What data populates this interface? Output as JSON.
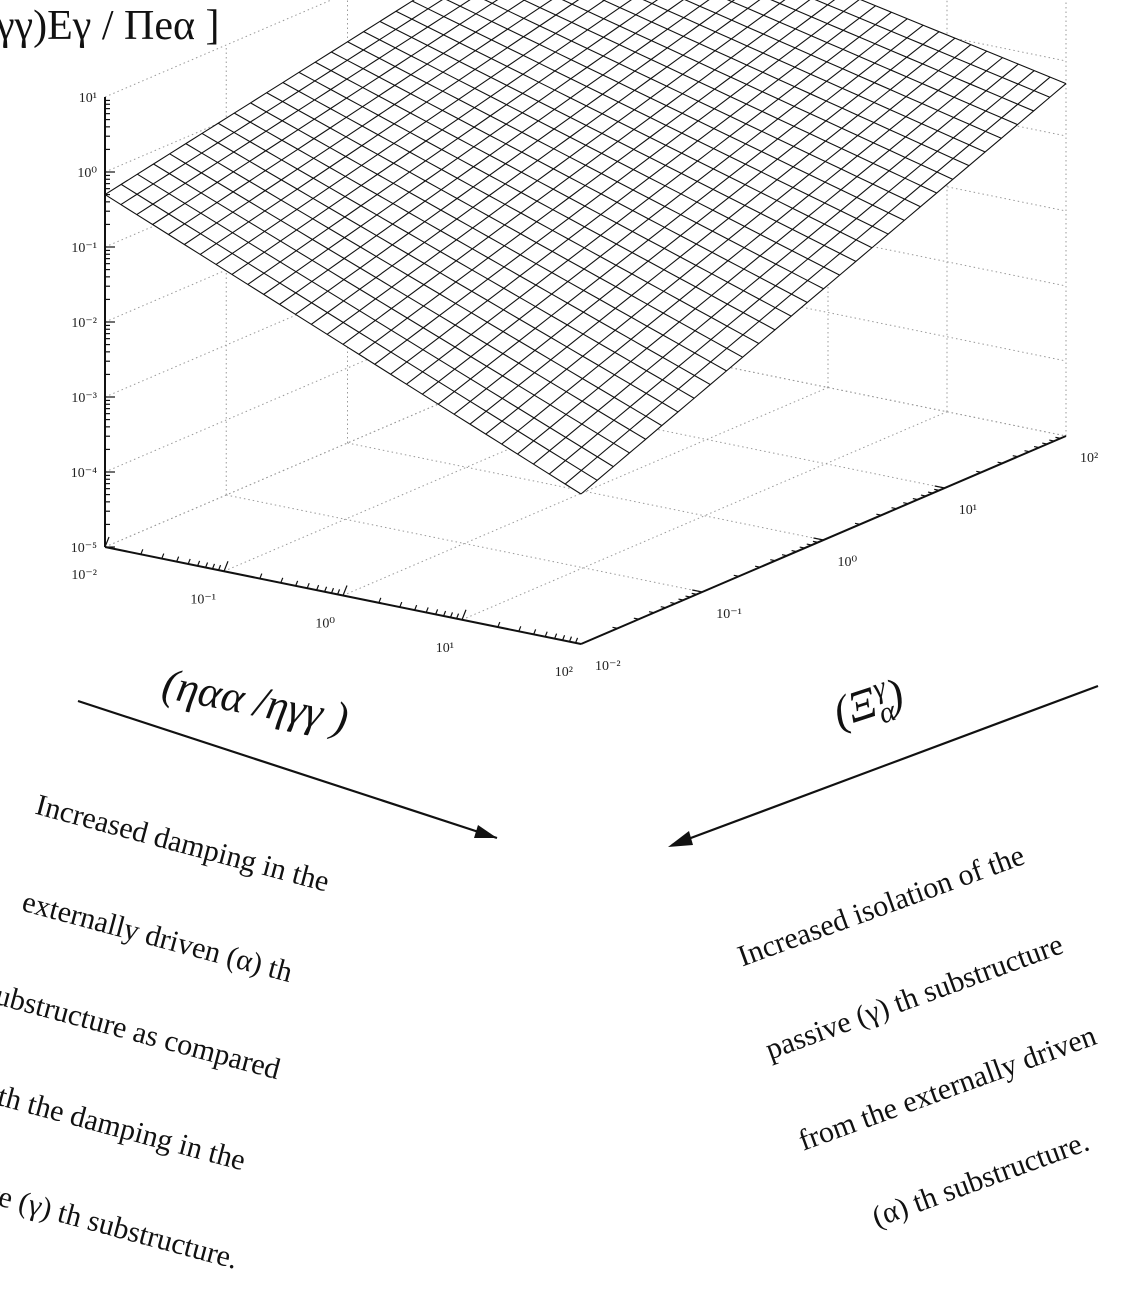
{
  "chart_data": {
    "type": "surface",
    "title": "",
    "zlabel": "γγ)Eγ / Πeα ]",
    "xlabel": "(ηαα /ηγγ )",
    "ylabel": "(Ξαγ)",
    "x_scale": "log",
    "y_scale": "log",
    "z_scale": "log",
    "x_ticks": [
      "10⁻²",
      "10⁻¹",
      "10⁰",
      "10¹",
      "10²"
    ],
    "y_ticks": [
      "10⁻²",
      "10⁻¹",
      "10⁰",
      "10¹",
      "10²"
    ],
    "z_ticks": [
      "10⁻⁵",
      "10⁻⁴",
      "10⁻³",
      "10⁻²",
      "10⁻¹",
      "10⁰",
      "10¹"
    ],
    "xlim": [
      0.01,
      100
    ],
    "ylim": [
      0.01,
      100
    ],
    "zlim": [
      1e-05,
      10
    ],
    "grid": true,
    "corner_values": [
      {
        "x": 0.01,
        "y": 0.01,
        "z": 0.5
      },
      {
        "x": 100,
        "y": 0.01,
        "z": 0.001
      },
      {
        "x": 0.01,
        "y": 100,
        "z": 10
      },
      {
        "x": 100,
        "y": 100,
        "z": 0.5
      }
    ]
  },
  "annotations": {
    "left_lines": [
      "Increased damping in the",
      "externally driven (α) th",
      "substructure as compared",
      "with the damping in the",
      "passive (γ) th substructure."
    ],
    "right_lines": [
      "Increased isolation of the",
      "passive (γ) th substructure",
      "from the externally driven",
      "(α) th substructure."
    ]
  }
}
